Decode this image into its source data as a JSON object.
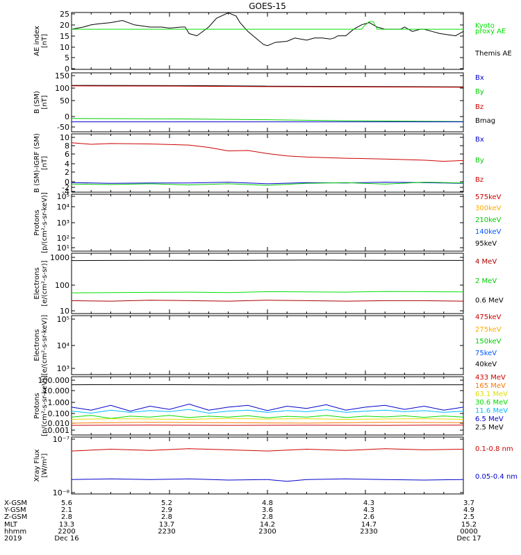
{
  "title": "GOES-15",
  "chart_data": [
    {
      "type": "line",
      "ylabel": [
        "AE index",
        "[nT]"
      ],
      "yticks": [
        "25",
        "20",
        "15",
        "10",
        "5",
        "0"
      ],
      "ylim": [
        0,
        25
      ],
      "legend": [
        {
          "label": "Kyoto",
          "color": "#00e000"
        },
        {
          "label": "proxy AE",
          "color": "#00e000"
        },
        {
          "label": "Themis AE",
          "color": "#000000"
        }
      ],
      "series": [
        {
          "color": "#000000",
          "x": [
            0,
            3,
            5,
            7,
            10,
            13,
            16,
            18,
            20,
            23,
            25,
            28,
            29,
            30,
            32,
            35,
            37,
            40,
            42,
            43,
            45,
            47,
            49,
            50,
            52,
            55,
            57,
            60,
            62,
            64,
            66,
            67,
            68,
            70,
            72,
            74,
            76,
            78,
            80,
            82,
            84,
            85,
            87,
            89,
            90,
            92,
            94,
            96,
            98,
            100
          ],
          "values": [
            18,
            19,
            20,
            20.5,
            21,
            22,
            20,
            19.5,
            19,
            19,
            18.5,
            19,
            19,
            16,
            15,
            19,
            23,
            25.5,
            24,
            21,
            17,
            14,
            11,
            10.5,
            12,
            12.5,
            14,
            13,
            14,
            14,
            13.5,
            14,
            15,
            15,
            18,
            20,
            21,
            19,
            18,
            18,
            18,
            19,
            17,
            18,
            18,
            17,
            16,
            15.5,
            15,
            17
          ]
        },
        {
          "color": "#00e000",
          "x": [
            0,
            74,
            75,
            76,
            77,
            78,
            100
          ],
          "values": [
            18,
            18,
            20,
            21.5,
            21.5,
            18,
            18
          ]
        }
      ]
    },
    {
      "type": "line",
      "ylabel": [
        "B (SM)",
        "[nT]"
      ],
      "yticks": [
        "150",
        "100",
        "50",
        "0",
        "-50"
      ],
      "ylim": [
        -60,
        150
      ],
      "legend": [
        {
          "label": "Bx",
          "color": "#0000cc"
        },
        {
          "label": "By",
          "color": "#00cc00"
        },
        {
          "label": "Bz",
          "color": "#cc0000"
        },
        {
          "label": "Bmag",
          "color": "#000000"
        }
      ],
      "series": [
        {
          "color": "#000000",
          "x": [
            0,
            30,
            50,
            100
          ],
          "values": [
            112,
            111,
            109,
            106
          ]
        },
        {
          "color": "#cc0000",
          "x": [
            0,
            30,
            50,
            100
          ],
          "values": [
            110,
            109,
            107,
            105
          ]
        },
        {
          "color": "#00cc00",
          "x": [
            0,
            30,
            50,
            70,
            100
          ],
          "values": [
            -17,
            -19,
            -22,
            -26,
            -29
          ]
        },
        {
          "color": "#0000cc",
          "x": [
            0,
            60,
            100
          ],
          "values": [
            -30,
            -30,
            -30
          ]
        }
      ]
    },
    {
      "type": "line",
      "ylabel": [
        "B (SM)-IGRF (SM)",
        "[nT]"
      ],
      "yticks": [
        "10",
        "8",
        "6",
        "4",
        "2",
        "0",
        "-2",
        "-4"
      ],
      "ylim": [
        -5,
        10
      ],
      "legend": [
        {
          "label": "Bx",
          "color": "#0000cc"
        },
        {
          "label": "By",
          "color": "#00cc00"
        },
        {
          "label": "Bz",
          "color": "#cc0000"
        }
      ],
      "series": [
        {
          "color": "#cc0000",
          "x": [
            0,
            5,
            10,
            20,
            30,
            35,
            40,
            45,
            50,
            55,
            60,
            70,
            80,
            90,
            95,
            100
          ],
          "values": [
            8.6,
            8.2,
            8.4,
            8.3,
            8.0,
            7.4,
            6.5,
            6.6,
            5.8,
            5.2,
            4.9,
            4.6,
            4.4,
            4.1,
            3.8,
            4.0
          ]
        },
        {
          "color": "#0000cc",
          "x": [
            0,
            10,
            20,
            30,
            40,
            50,
            60,
            70,
            80,
            90,
            100
          ],
          "values": [
            -1.7,
            -1.9,
            -1.8,
            -1.8,
            -1.6,
            -2.0,
            -1.7,
            -1.8,
            -1.6,
            -1.7,
            -1.9
          ]
        },
        {
          "color": "#00cc00",
          "x": [
            0,
            10,
            20,
            30,
            40,
            50,
            60,
            70,
            80,
            90,
            100
          ],
          "values": [
            -2.1,
            -2.2,
            -2.0,
            -2.3,
            -2.0,
            -2.4,
            -1.9,
            -1.7,
            -2.1,
            -1.6,
            -1.8
          ]
        }
      ]
    },
    {
      "type": "line",
      "ylabel": [
        "Protons",
        "[p/(cm²-s-sr-keV)]"
      ],
      "yticks": [
        "10⁵",
        "10⁴",
        "10³",
        "10²",
        "10¹"
      ],
      "legend": [
        {
          "label": "575keV",
          "color": "#cc0000"
        },
        {
          "label": "300keV",
          "color": "#ffaa00"
        },
        {
          "label": "210keV",
          "color": "#00cc00"
        },
        {
          "label": "140keV",
          "color": "#0055ff"
        },
        {
          "label": "95keV",
          "color": "#000000"
        }
      ],
      "series": []
    },
    {
      "type": "line",
      "ylabel": [
        "Electrons",
        "[e/(cm²-s-sr)]"
      ],
      "yticks": [
        "1000",
        "100",
        "10"
      ],
      "ylim": [
        10,
        1000
      ],
      "legend": [
        {
          "label": "4 MeV",
          "color": "#aa0000"
        },
        {
          "label": "2 MeV",
          "color": "#00cc00"
        },
        {
          "label": "0.6 MeV",
          "color": "#000000"
        }
      ],
      "series": [
        {
          "color": "#000000",
          "x": [
            0,
            20,
            40,
            60,
            80,
            100
          ],
          "values": [
            760,
            780,
            770,
            790,
            780,
            770
          ]
        },
        {
          "color": "#00e000",
          "x": [
            0,
            10,
            20,
            30,
            40,
            50,
            60,
            70,
            80,
            90,
            100
          ],
          "values": [
            47,
            48,
            49,
            50,
            48,
            52,
            51,
            50,
            53,
            52,
            51
          ]
        },
        {
          "color": "#aa0000",
          "x": [
            0,
            10,
            20,
            30,
            40,
            50,
            60,
            70,
            80,
            90,
            100
          ],
          "values": [
            24,
            23,
            25,
            24,
            23,
            25,
            24,
            23,
            24,
            24,
            23
          ]
        }
      ]
    },
    {
      "type": "line",
      "ylabel": [
        "Electrons",
        "[e/(cm²-s-sr-keV)]"
      ],
      "yticks": [
        "10⁵",
        "10⁴",
        "10³"
      ],
      "legend": [
        {
          "label": "475keV",
          "color": "#cc0000"
        },
        {
          "label": "275keV",
          "color": "#ffaa00"
        },
        {
          "label": "150keV",
          "color": "#00cc00"
        },
        {
          "label": "75keV",
          "color": "#0055ff"
        },
        {
          "label": "40keV",
          "color": "#000000"
        }
      ],
      "series": []
    },
    {
      "type": "line",
      "ylabel": [
        "Protons",
        "[p/(cm²-s-sr-keV)]"
      ],
      "yticks": [
        "100.000",
        "10.000",
        "1.000",
        "0.100",
        "0.010",
        "0.001"
      ],
      "ylim": [
        0.001,
        100
      ],
      "legend": [
        {
          "label": "433 MeV",
          "color": "#cc0000"
        },
        {
          "label": "165 MeV",
          "color": "#ff7700"
        },
        {
          "label": "63.1 MeV",
          "color": "#dddd00"
        },
        {
          "label": "30.6 MeV",
          "color": "#00dd00"
        },
        {
          "label": "11.6 MeV",
          "color": "#00bbff"
        },
        {
          "label": "6.5 MeV",
          "color": "#0000cc"
        },
        {
          "label": "2.5 MeV",
          "color": "#000000"
        }
      ],
      "series": [
        {
          "color": "#000000",
          "x": [
            0,
            20,
            40,
            60,
            80,
            100
          ],
          "values": [
            35,
            36,
            34,
            35,
            34,
            35
          ]
        },
        {
          "color": "#0000cc",
          "x": [
            0,
            5,
            10,
            15,
            20,
            25,
            30,
            35,
            40,
            45,
            50,
            55,
            60,
            65,
            70,
            75,
            80,
            85,
            90,
            95,
            100
          ],
          "values": [
            0.2,
            0.1,
            0.3,
            0.08,
            0.25,
            0.12,
            0.4,
            0.1,
            0.2,
            0.3,
            0.09,
            0.25,
            0.15,
            0.35,
            0.1,
            0.2,
            0.3,
            0.12,
            0.25,
            0.1,
            0.2
          ]
        },
        {
          "color": "#00bbff",
          "x": [
            0,
            5,
            10,
            15,
            20,
            25,
            30,
            35,
            40,
            45,
            50,
            55,
            60,
            65,
            70,
            75,
            80,
            85,
            90,
            95,
            100
          ],
          "values": [
            0.08,
            0.05,
            0.1,
            0.06,
            0.09,
            0.07,
            0.12,
            0.05,
            0.08,
            0.1,
            0.06,
            0.09,
            0.07,
            0.11,
            0.06,
            0.08,
            0.1,
            0.07,
            0.09,
            0.06,
            0.08
          ]
        },
        {
          "color": "#00dd00",
          "x": [
            0,
            5,
            10,
            15,
            20,
            25,
            30,
            35,
            40,
            45,
            50,
            55,
            60,
            65,
            70,
            75,
            80,
            85,
            90,
            95,
            100
          ],
          "values": [
            0.02,
            0.03,
            0.015,
            0.025,
            0.02,
            0.03,
            0.018,
            0.025,
            0.02,
            0.028,
            0.017,
            0.024,
            0.02,
            0.03,
            0.018,
            0.025,
            0.021,
            0.027,
            0.019,
            0.026,
            0.02
          ]
        },
        {
          "color": "#dddd00",
          "x": [
            0,
            10,
            20,
            30,
            40,
            50,
            60,
            70,
            80,
            90,
            100
          ],
          "values": [
            0.012,
            0.014,
            0.013,
            0.012,
            0.015,
            0.013,
            0.014,
            0.012,
            0.013,
            0.014,
            0.012
          ]
        },
        {
          "color": "#ff7700",
          "x": [
            0,
            20,
            40,
            60,
            80,
            100
          ],
          "values": [
            0.005,
            0.006,
            0.0055,
            0.005,
            0.006,
            0.0055
          ]
        },
        {
          "color": "#cc0000",
          "x": [
            0,
            20,
            40,
            60,
            80,
            100
          ],
          "values": [
            0.003,
            0.0032,
            0.003,
            0.0031,
            0.003,
            0.0032
          ]
        }
      ]
    },
    {
      "type": "line",
      "ylabel": [
        "Xray Flux",
        "[W/m²]"
      ],
      "yticks": [
        "10⁻⁷",
        "10⁻⁸"
      ],
      "ylim": [
        1e-08,
        1e-07
      ],
      "legend": [
        {
          "label": "0.1-0.8 nm",
          "color": "#cc0000"
        },
        {
          "label": "0.05-0.4 nm",
          "color": "#0000cc"
        }
      ],
      "series": [
        {
          "color": "#cc0000",
          "x": [
            0,
            10,
            20,
            30,
            40,
            50,
            60,
            70,
            80,
            90,
            100
          ],
          "values": [
            8e-08,
            8.3e-08,
            8.1e-08,
            8.4e-08,
            8.2e-08,
            8e-08,
            8.3e-08,
            8.1e-08,
            8.4e-08,
            8.2e-08,
            8.3e-08
          ]
        },
        {
          "color": "#0000cc",
          "x": [
            0,
            10,
            20,
            30,
            40,
            50,
            55,
            60,
            70,
            80,
            90,
            100
          ],
          "values": [
            3.2e-08,
            3.3e-08,
            3.2e-08,
            3.3e-08,
            3.1e-08,
            3.2e-08,
            2.9e-08,
            3.2e-08,
            3.3e-08,
            3.2e-08,
            3.1e-08,
            3.2e-08
          ]
        }
      ]
    }
  ],
  "axis_table": {
    "row_labels": [
      "X-GSM",
      "Y-GSM",
      "Z-GSM",
      "MLT",
      "hhmm",
      "2019"
    ],
    "columns": [
      [
        "5.6",
        "2.1",
        "2.8",
        "13.3",
        "2200",
        "Dec 16"
      ],
      [
        "5.2",
        "2.9",
        "2.8",
        "13.7",
        "2230",
        ""
      ],
      [
        "4.8",
        "3.6",
        "2.8",
        "14.2",
        "2300",
        ""
      ],
      [
        "4.3",
        "4.3",
        "2.6",
        "14.7",
        "2330",
        ""
      ],
      [
        "3.7",
        "4.9",
        "2.5",
        "15.2",
        "0000",
        "Dec 17"
      ]
    ]
  }
}
